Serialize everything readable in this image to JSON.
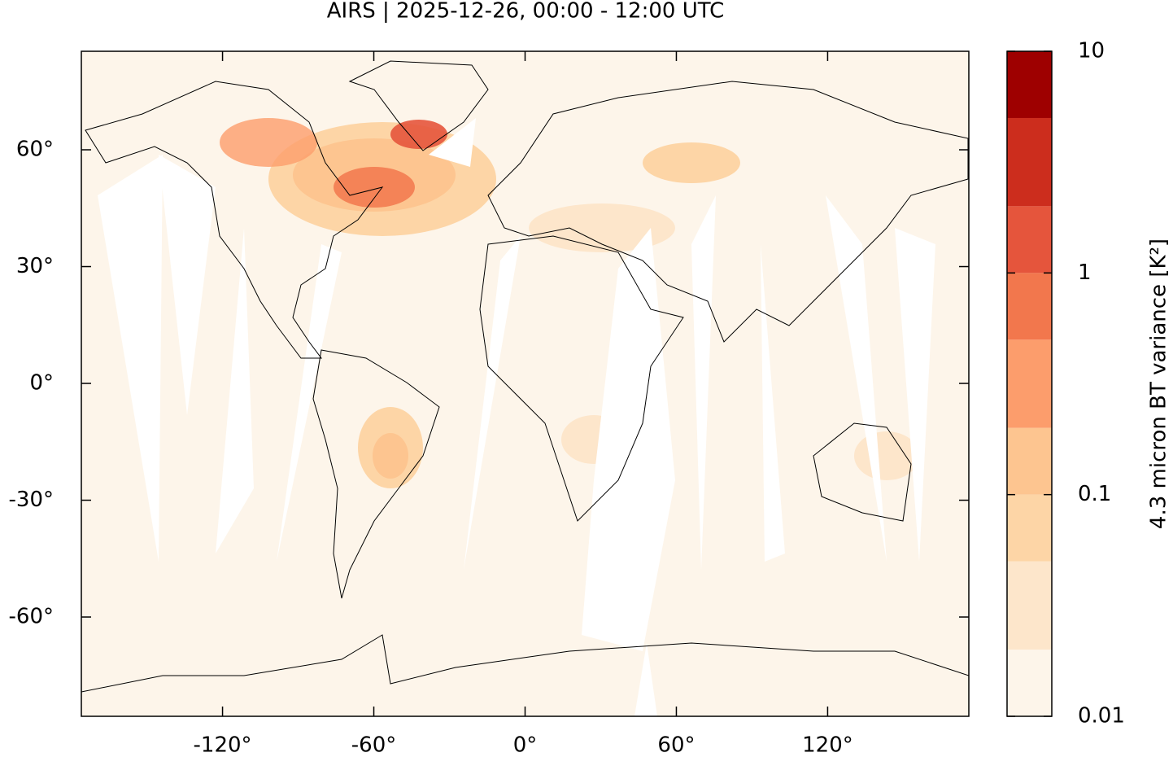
{
  "chart_data": {
    "type": "map",
    "title": "AIRS | 2025-12-26, 00:00 - 12:00 UTC",
    "xlim": [
      -176,
      176
    ],
    "ylim": [
      -85.5,
      85.3
    ],
    "xticks": [
      {
        "value": -120,
        "label": "-120°"
      },
      {
        "value": -60,
        "label": "-60°"
      },
      {
        "value": 0,
        "label": "0°"
      },
      {
        "value": 60,
        "label": "60°"
      },
      {
        "value": 120,
        "label": "120°"
      }
    ],
    "yticks": [
      {
        "value": -60,
        "label": "-60°"
      },
      {
        "value": -30,
        "label": "-30°"
      },
      {
        "value": 0,
        "label": "0°"
      },
      {
        "value": 30,
        "label": "30°"
      },
      {
        "value": 60,
        "label": "60°"
      }
    ],
    "colorbar": {
      "label": "4.3 micron BT variance [K²]",
      "log": true,
      "lim": [
        0.01,
        10
      ],
      "levels": [
        0.01,
        0.02,
        0.05,
        0.1,
        0.2,
        0.5,
        1,
        2,
        5,
        10
      ],
      "colors": [
        "#fdf5ea",
        "#fde6cb",
        "#fdd5a6",
        "#fdc590",
        "#fc9d6c",
        "#f2774d",
        "#e5553c",
        "#cc2d1d",
        "#9e0000"
      ],
      "ticks": [
        0.01,
        0.1,
        1,
        10
      ]
    }
  }
}
